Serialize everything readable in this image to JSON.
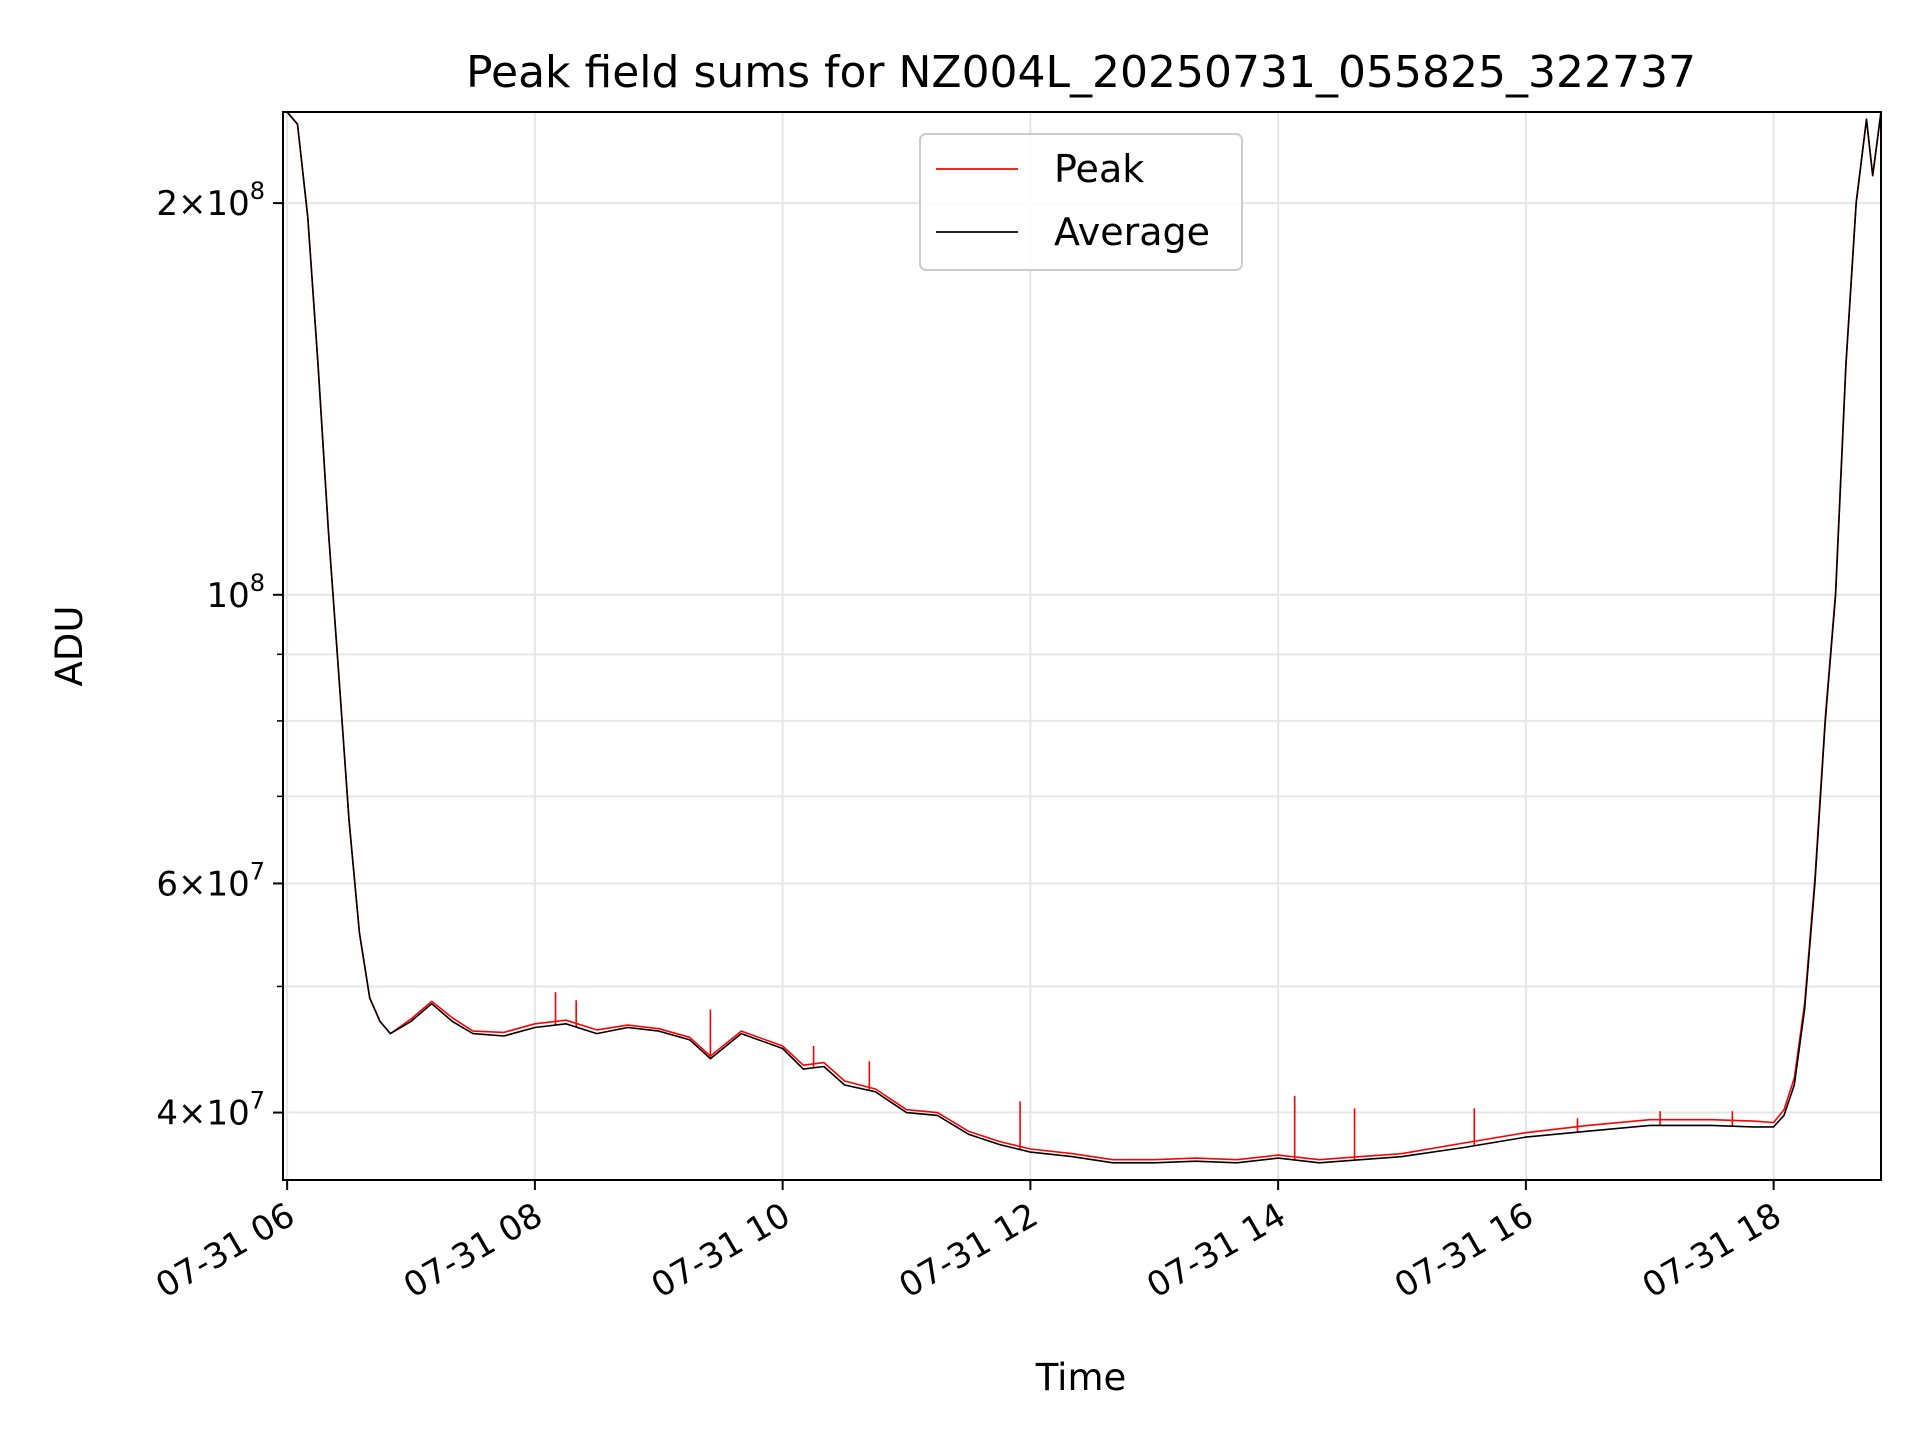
{
  "chart_data": {
    "type": "line",
    "title": "Peak field sums for NZ004L_20250731_055825_322737",
    "xlabel": "Time",
    "ylabel": "ADU",
    "y_scale": "log",
    "xlim": [
      "2025-07-31 05:58",
      "2025-07-31 18:52"
    ],
    "ylim": [
      35500000,
      235000000
    ],
    "x_ticks": [
      "07-31 06",
      "07-31 08",
      "07-31 10",
      "07-31 12",
      "07-31 14",
      "07-31 16",
      "07-31 18"
    ],
    "y_tick_labels": [
      {
        "value": 40000000,
        "mantissa": "4",
        "exponent": "7"
      },
      {
        "value": 60000000,
        "mantissa": "6",
        "exponent": "7"
      },
      {
        "value": 100000000,
        "mantissa": "",
        "exponent": "8"
      },
      {
        "value": 200000000,
        "mantissa": "2",
        "exponent": "8"
      }
    ],
    "y_minor_ticks": [
      50000000,
      70000000,
      80000000,
      90000000
    ],
    "grid": true,
    "legend_position": "top-center",
    "series": [
      {
        "name": "Average",
        "color": "#000000",
        "x": [
          "2025-07-31 06:00",
          "2025-07-31 06:05",
          "2025-07-31 06:10",
          "2025-07-31 06:15",
          "2025-07-31 06:20",
          "2025-07-31 06:25",
          "2025-07-31 06:30",
          "2025-07-31 06:35",
          "2025-07-31 06:40",
          "2025-07-31 06:45",
          "2025-07-31 06:50",
          "2025-07-31 07:00",
          "2025-07-31 07:10",
          "2025-07-31 07:20",
          "2025-07-31 07:30",
          "2025-07-31 07:45",
          "2025-07-31 08:00",
          "2025-07-31 08:15",
          "2025-07-31 08:30",
          "2025-07-31 08:45",
          "2025-07-31 09:00",
          "2025-07-31 09:15",
          "2025-07-31 09:25",
          "2025-07-31 09:40",
          "2025-07-31 10:00",
          "2025-07-31 10:10",
          "2025-07-31 10:20",
          "2025-07-31 10:30",
          "2025-07-31 10:45",
          "2025-07-31 11:00",
          "2025-07-31 11:15",
          "2025-07-31 11:30",
          "2025-07-31 11:45",
          "2025-07-31 12:00",
          "2025-07-31 12:20",
          "2025-07-31 12:40",
          "2025-07-31 13:00",
          "2025-07-31 13:20",
          "2025-07-31 13:40",
          "2025-07-31 14:00",
          "2025-07-31 14:20",
          "2025-07-31 14:40",
          "2025-07-31 15:00",
          "2025-07-31 15:30",
          "2025-07-31 16:00",
          "2025-07-31 16:30",
          "2025-07-31 17:00",
          "2025-07-31 17:30",
          "2025-07-31 17:50",
          "2025-07-31 18:00",
          "2025-07-31 18:05",
          "2025-07-31 18:10",
          "2025-07-31 18:15",
          "2025-07-31 18:20",
          "2025-07-31 18:25",
          "2025-07-31 18:30",
          "2025-07-31 18:35",
          "2025-07-31 18:40",
          "2025-07-31 18:45",
          "2025-07-31 18:48",
          "2025-07-31 18:52"
        ],
        "y": [
          235000000,
          230000000,
          195000000,
          150000000,
          112000000,
          87000000,
          67000000,
          55000000,
          49000000,
          47000000,
          46000000,
          47000000,
          48500000,
          47000000,
          46000000,
          45800000,
          46500000,
          46800000,
          46000000,
          46500000,
          46200000,
          45500000,
          44000000,
          46000000,
          44800000,
          43200000,
          43400000,
          42000000,
          41500000,
          40000000,
          39800000,
          38500000,
          37800000,
          37300000,
          37000000,
          36600000,
          36600000,
          36700000,
          36600000,
          36900000,
          36600000,
          36800000,
          37000000,
          37600000,
          38300000,
          38700000,
          39100000,
          39100000,
          39000000,
          39000000,
          39800000,
          42000000,
          48000000,
          60000000,
          80000000,
          100000000,
          150000000,
          200000000,
          232000000,
          210000000,
          235000000
        ]
      },
      {
        "name": "Peak",
        "color": "#ff0000",
        "x": [
          "2025-07-31 06:00",
          "2025-07-31 06:05",
          "2025-07-31 06:10",
          "2025-07-31 06:15",
          "2025-07-31 06:20",
          "2025-07-31 06:25",
          "2025-07-31 06:30",
          "2025-07-31 06:35",
          "2025-07-31 06:40",
          "2025-07-31 06:45",
          "2025-07-31 06:50",
          "2025-07-31 07:00",
          "2025-07-31 07:10",
          "2025-07-31 07:20",
          "2025-07-31 07:30",
          "2025-07-31 07:45",
          "2025-07-31 08:00",
          "2025-07-31 08:15",
          "2025-07-31 08:30",
          "2025-07-31 08:45",
          "2025-07-31 09:00",
          "2025-07-31 09:15",
          "2025-07-31 09:25",
          "2025-07-31 09:40",
          "2025-07-31 10:00",
          "2025-07-31 10:10",
          "2025-07-31 10:20",
          "2025-07-31 10:30",
          "2025-07-31 10:45",
          "2025-07-31 11:00",
          "2025-07-31 11:15",
          "2025-07-31 11:30",
          "2025-07-31 11:45",
          "2025-07-31 12:00",
          "2025-07-31 12:20",
          "2025-07-31 12:40",
          "2025-07-31 13:00",
          "2025-07-31 13:20",
          "2025-07-31 13:40",
          "2025-07-31 14:00",
          "2025-07-31 14:20",
          "2025-07-31 14:40",
          "2025-07-31 15:00",
          "2025-07-31 15:30",
          "2025-07-31 16:00",
          "2025-07-31 16:30",
          "2025-07-31 17:00",
          "2025-07-31 17:30",
          "2025-07-31 17:50",
          "2025-07-31 18:00",
          "2025-07-31 18:05",
          "2025-07-31 18:10",
          "2025-07-31 18:15",
          "2025-07-31 18:20",
          "2025-07-31 18:25",
          "2025-07-31 18:30",
          "2025-07-31 18:35",
          "2025-07-31 18:40",
          "2025-07-31 18:45",
          "2025-07-31 18:48",
          "2025-07-31 18:52"
        ],
        "y": [
          235000000,
          230000000,
          195000000,
          150000000,
          112000000,
          87000000,
          67000000,
          55000000,
          49000000,
          47000000,
          46000000,
          47200000,
          48700000,
          47300000,
          46200000,
          46100000,
          46800000,
          47100000,
          46300000,
          46700000,
          46400000,
          45700000,
          44200000,
          46200000,
          45000000,
          43500000,
          43700000,
          42300000,
          41700000,
          40200000,
          40000000,
          38700000,
          38000000,
          37500000,
          37200000,
          36800000,
          36800000,
          36900000,
          36800000,
          37100000,
          36800000,
          37000000,
          37200000,
          37900000,
          38600000,
          39100000,
          39500000,
          39500000,
          39400000,
          39300000,
          40200000,
          42500000,
          48500000,
          60500000,
          80500000,
          100500000,
          150500000,
          200500000,
          232000000,
          210000000,
          235000000
        ]
      }
    ],
    "peak_spikes": [
      {
        "x": "2025-07-31 08:10",
        "y": 49500000
      },
      {
        "x": "2025-07-31 08:20",
        "y": 48800000
      },
      {
        "x": "2025-07-31 09:25",
        "y": 48000000
      },
      {
        "x": "2025-07-31 10:15",
        "y": 45000000
      },
      {
        "x": "2025-07-31 10:42",
        "y": 43800000
      },
      {
        "x": "2025-07-31 11:55",
        "y": 40800000
      },
      {
        "x": "2025-07-31 14:08",
        "y": 41200000
      },
      {
        "x": "2025-07-31 14:37",
        "y": 40300000
      },
      {
        "x": "2025-07-31 15:35",
        "y": 40300000
      },
      {
        "x": "2025-07-31 16:25",
        "y": 39600000
      },
      {
        "x": "2025-07-31 17:05",
        "y": 40100000
      },
      {
        "x": "2025-07-31 17:40",
        "y": 40100000
      }
    ]
  }
}
